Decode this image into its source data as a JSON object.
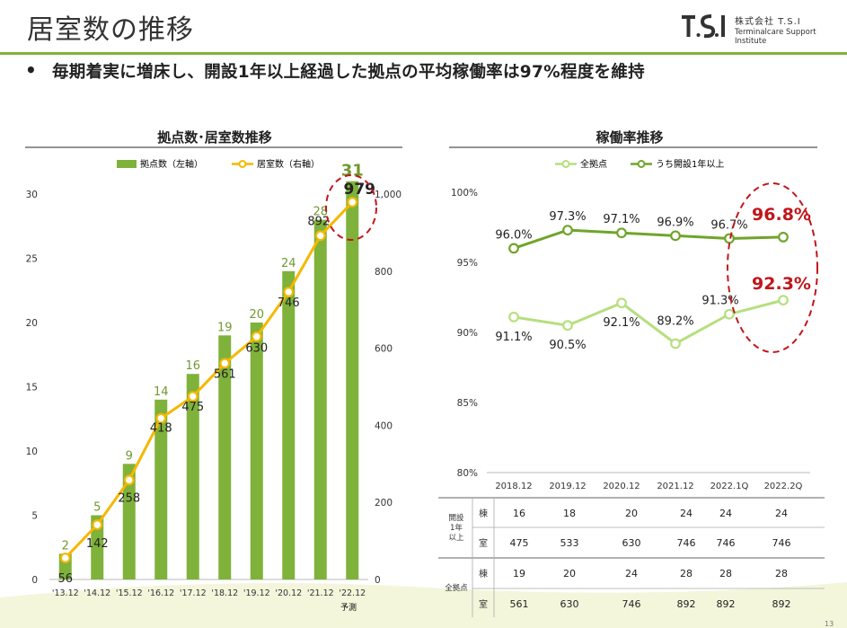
{
  "header": {
    "title": "居室数の推移",
    "company_name": "株式会社 T.S.I",
    "company_sub": "Terminalcare Support Institute",
    "logo_text": "T.S.I"
  },
  "bullet": {
    "marker": "•",
    "text": "毎期着実に増床し、開設1年以上経過した拠点の平均稼働率は97%程度を維持"
  },
  "page_number": "13",
  "colors": {
    "bar": "#7fb23a",
    "line_rooms": "#f5b800",
    "line_all": "#b6df7e",
    "line_1yr": "#6fa52a",
    "highlight_circle": "#c0161b",
    "count_label": "#6f9a2f"
  },
  "chart_data": [
    {
      "type": "bar",
      "title": "拠点数･居室数推移",
      "categories": [
        "'13.12",
        "'14.12",
        "'15.12",
        "'16.12",
        "'17.12",
        "'18.12",
        "'19.12",
        "'20.12",
        "'21.12",
        "'22.12"
      ],
      "footnote": "予測",
      "series": [
        {
          "name": "拠点数（左軸）",
          "type": "bar",
          "axis": "left",
          "values": [
            2,
            5,
            9,
            14,
            16,
            19,
            20,
            24,
            28,
            31
          ]
        },
        {
          "name": "居室数（右軸）",
          "type": "line",
          "axis": "right",
          "values": [
            56,
            142,
            258,
            418,
            475,
            561,
            630,
            746,
            892,
            979
          ]
        }
      ],
      "left_axis": {
        "min": 0,
        "max": 30,
        "ticks": [
          "0",
          "5",
          "10",
          "15",
          "20",
          "25",
          "30"
        ]
      },
      "right_axis": {
        "min": 0,
        "max": 1000,
        "ticks": [
          "0",
          "200",
          "400",
          "600",
          "800",
          "1,000"
        ]
      },
      "legend_position": "top"
    },
    {
      "type": "line",
      "title": "稼働率推移",
      "categories": [
        "2018.12",
        "2019.12",
        "2020.12",
        "2021.12",
        "2022.1Q",
        "2022.2Q"
      ],
      "series": [
        {
          "name": "全拠点",
          "values": [
            91.1,
            90.5,
            92.1,
            89.2,
            91.3,
            92.3
          ],
          "labels": [
            "91.1%",
            "90.5%",
            "92.1%",
            "89.2%",
            "91.3%",
            "92.3%"
          ]
        },
        {
          "name": "うち開設1年以上",
          "values": [
            96.0,
            97.3,
            97.1,
            96.9,
            96.7,
            96.8
          ],
          "labels": [
            "96.0%",
            "97.3%",
            "97.1%",
            "96.9%",
            "96.7%",
            "96.8%"
          ]
        }
      ],
      "y_axis": {
        "min": 80,
        "max": 100,
        "ticks": [
          "80%",
          "85%",
          "90%",
          "95%",
          "100%"
        ]
      },
      "legend_position": "top"
    }
  ],
  "table": {
    "groups": [
      {
        "label": "開設\n1年\n以上",
        "rows": [
          {
            "unit": "棟",
            "values": [
              "16",
              "18",
              "20",
              "24",
              "24",
              "24"
            ]
          },
          {
            "unit": "室",
            "values": [
              "475",
              "533",
              "630",
              "746",
              "746",
              "746"
            ]
          }
        ]
      },
      {
        "label": "全拠点",
        "rows": [
          {
            "unit": "棟",
            "values": [
              "19",
              "20",
              "24",
              "28",
              "28",
              "28"
            ]
          },
          {
            "unit": "室",
            "values": [
              "561",
              "630",
              "746",
              "892",
              "892",
              "892"
            ]
          }
        ]
      }
    ]
  }
}
